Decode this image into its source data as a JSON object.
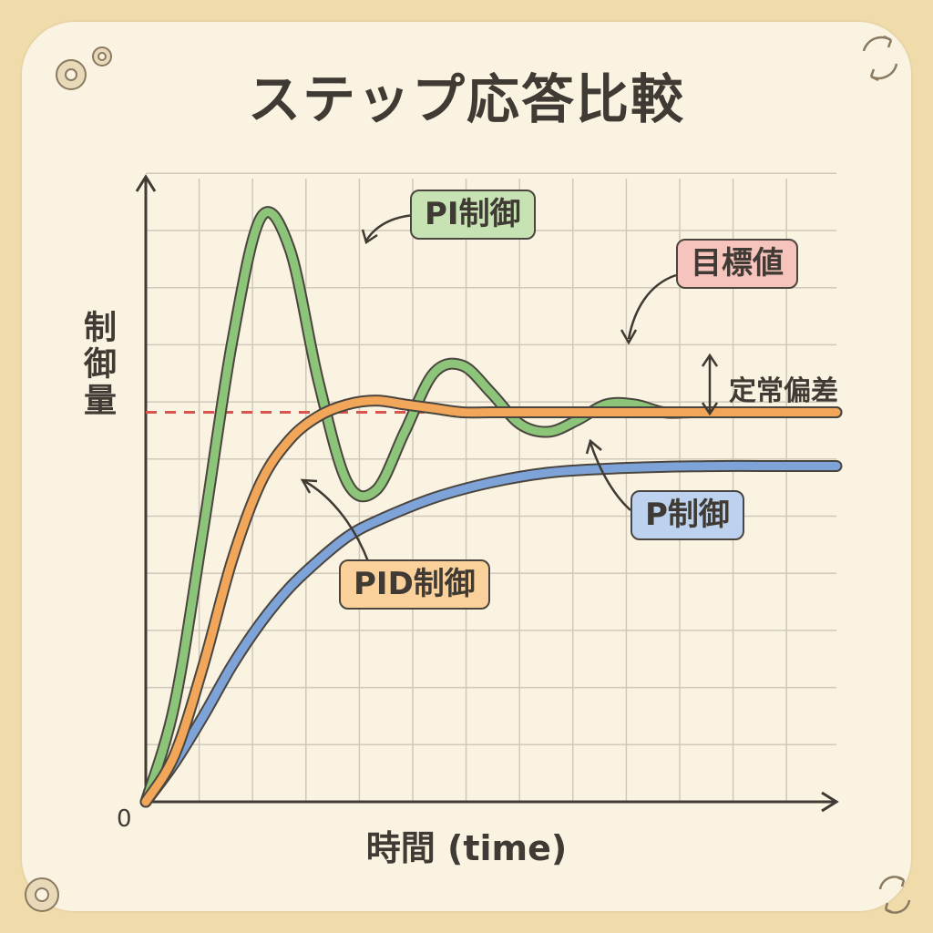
{
  "title": "ステップ応答比較",
  "chart_data": {
    "type": "line",
    "title": "ステップ応答比較",
    "xlabel": "時間 (time)",
    "ylabel": "制御量",
    "origin_label": "0",
    "xlim": [
      0,
      12
    ],
    "ylim": [
      0,
      1.6
    ],
    "grid": true,
    "setpoint": {
      "name": "目標値",
      "value": 1.0,
      "color": "#d9534f",
      "style": "dashed"
    },
    "series": [
      {
        "name": "PI制御",
        "color": "#8cc47a",
        "x": [
          0,
          0.5,
          1.0,
          1.5,
          2.0,
          2.5,
          3.0,
          3.5,
          4.0,
          4.5,
          5.0,
          5.5,
          6.0,
          6.5,
          7.0,
          7.5,
          8.0,
          8.5,
          9.0,
          9.5,
          10.0,
          10.5,
          11.0,
          11.5,
          12.0
        ],
        "values": [
          0,
          0.25,
          0.7,
          1.18,
          1.5,
          1.42,
          1.08,
          0.82,
          0.8,
          0.95,
          1.1,
          1.12,
          1.05,
          0.97,
          0.95,
          0.98,
          1.02,
          1.02,
          1.0,
          1.0,
          1.0,
          1.0,
          1.0,
          1.0,
          1.0
        ]
      },
      {
        "name": "PID制御",
        "color": "#f2a65a",
        "x": [
          0,
          0.5,
          1.0,
          1.5,
          2.0,
          2.5,
          3.0,
          3.5,
          4.0,
          4.5,
          5.0,
          5.5,
          6.0,
          7.0,
          8.0,
          9.0,
          10.0,
          11.0,
          12.0
        ],
        "values": [
          0,
          0.12,
          0.35,
          0.62,
          0.82,
          0.93,
          0.99,
          1.02,
          1.03,
          1.02,
          1.01,
          1.0,
          1.0,
          1.0,
          1.0,
          1.0,
          1.0,
          1.0,
          1.0
        ]
      },
      {
        "name": "P制御",
        "color": "#7ea3d8",
        "x": [
          0,
          0.5,
          1.0,
          1.5,
          2.0,
          2.5,
          3.0,
          3.5,
          4.0,
          5.0,
          6.0,
          7.0,
          8.0,
          9.0,
          10.0,
          11.0,
          12.0
        ],
        "values": [
          0,
          0.1,
          0.22,
          0.35,
          0.46,
          0.55,
          0.62,
          0.68,
          0.72,
          0.78,
          0.82,
          0.845,
          0.855,
          0.86,
          0.862,
          0.862,
          0.862
        ]
      }
    ],
    "annotations": [
      {
        "text": "PI制御",
        "target_series": "PI制御"
      },
      {
        "text": "目標値",
        "target_series": "setpoint"
      },
      {
        "text": "P制御",
        "target_series": "P制御"
      },
      {
        "text": "PID制御",
        "target_series": "PID制御"
      },
      {
        "text": "定常偏差",
        "type": "gap",
        "between": [
          "setpoint",
          "P制御"
        ]
      }
    ]
  },
  "colors": {
    "background": "#fbf3e1",
    "frame": "#efdcaa",
    "grid": "#cfc8bb",
    "axis": "#3f3a33"
  },
  "icons": [
    "gear-icon",
    "cycle-arrows-icon"
  ]
}
